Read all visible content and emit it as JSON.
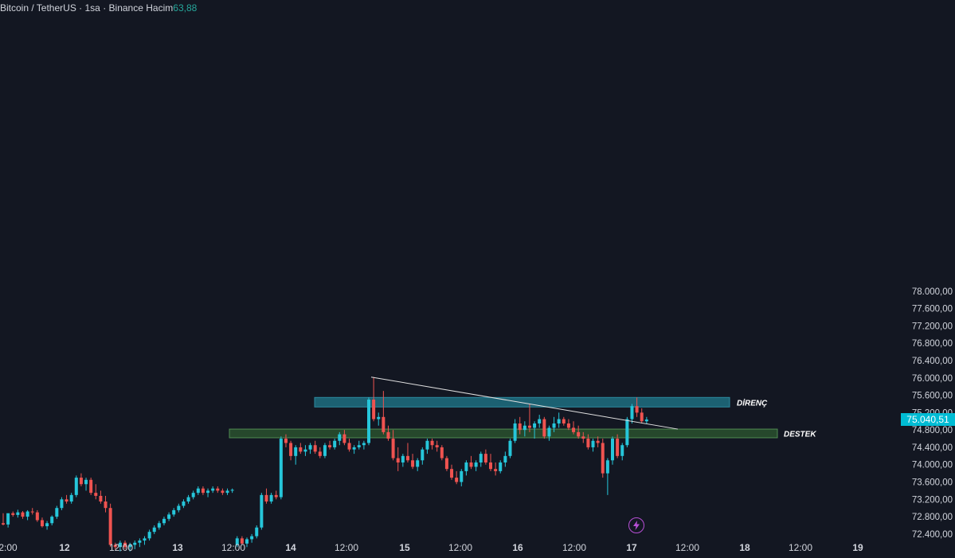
{
  "legend": {
    "symbol": "Bitcoin / TetherUS",
    "sep": " · ",
    "interval": "1sa",
    "exchange": "Binance",
    "volume_label": "Hacim",
    "volume_value": "63,88"
  },
  "last_price_label": "75.040,51",
  "colors": {
    "background": "#131722",
    "up": "#26c6da",
    "down": "#ef5350",
    "resistance_zone": "#1e6f80",
    "support_zone": "#2e5a30",
    "trendline": "#e0e0e0",
    "price_tag": "#00bcd4"
  },
  "icons": {
    "bolt": "lightning-icon"
  },
  "chart_data": {
    "type": "candlestick",
    "title": "",
    "y_axis": {
      "ticks": [
        72400,
        72800,
        73200,
        73600,
        74000,
        74400,
        74800,
        75200,
        75600,
        76000,
        76400,
        76800,
        77200,
        77600,
        78000
      ],
      "tick_labels": [
        "72.400,00",
        "72.800,00",
        "73.200,00",
        "73.600,00",
        "74.000,00",
        "74.400,00",
        "74.800,00",
        "75.200,00",
        "75.600,00",
        "76.000,00",
        "76.400,00",
        "76.800,00",
        "77.200,00",
        "77.600,00",
        "78.000,00"
      ],
      "range": [
        72150,
        78120
      ]
    },
    "x_axis": {
      "tick_labels": [
        "2:00",
        "12",
        "12:00",
        "13",
        "12:00",
        "14",
        "12:00",
        "15",
        "12:00",
        "16",
        "12:00",
        "17",
        "12:00",
        "18",
        "12:00",
        "19"
      ],
      "bold_labels": [
        "12",
        "13",
        "14",
        "15",
        "16",
        "17",
        "18",
        "19"
      ]
    },
    "annotations": [
      {
        "type": "zone",
        "label": "DİRENÇ",
        "price_range": [
          75330,
          75550
        ]
      },
      {
        "type": "zone",
        "label": "DESTEK",
        "price_range": [
          74620,
          74820
        ]
      },
      {
        "type": "trendline",
        "from_price": 76020,
        "to_price": 74820
      }
    ],
    "last_price": 75040.51,
    "candles": [
      [
        72650,
        72880,
        72600,
        72620
      ],
      [
        72620,
        72870,
        72550,
        72880
      ],
      [
        72880,
        72920,
        72800,
        72840
      ],
      [
        72840,
        72960,
        72780,
        72900
      ],
      [
        72900,
        72930,
        72750,
        72800
      ],
      [
        72800,
        72950,
        72720,
        72920
      ],
      [
        72920,
        73000,
        72850,
        72900
      ],
      [
        72900,
        72950,
        72680,
        72720
      ],
      [
        72720,
        72780,
        72550,
        72580
      ],
      [
        72580,
        72700,
        72500,
        72650
      ],
      [
        72650,
        72830,
        72600,
        72800
      ],
      [
        72800,
        73050,
        72750,
        73000
      ],
      [
        73000,
        73250,
        72950,
        73200
      ],
      [
        73200,
        73300,
        73100,
        73150
      ],
      [
        73150,
        73350,
        73100,
        73300
      ],
      [
        73300,
        73750,
        73250,
        73700
      ],
      [
        73700,
        73800,
        73500,
        73550
      ],
      [
        73550,
        73700,
        73400,
        73650
      ],
      [
        73650,
        73700,
        73300,
        73350
      ],
      [
        73350,
        73550,
        73200,
        73280
      ],
      [
        73280,
        73400,
        73100,
        73150
      ],
      [
        73150,
        73280,
        72900,
        73000
      ],
      [
        73000,
        73100,
        72100,
        72150
      ],
      [
        72150,
        72200,
        72050,
        72100
      ],
      [
        72100,
        72250,
        72000,
        72200
      ],
      [
        72200,
        72250,
        72050,
        72100
      ],
      [
        72100,
        72200,
        72000,
        72150
      ],
      [
        72150,
        72250,
        72050,
        72200
      ],
      [
        72200,
        72300,
        72100,
        72250
      ],
      [
        72250,
        72350,
        72150,
        72300
      ],
      [
        72300,
        72500,
        72250,
        72450
      ],
      [
        72450,
        72600,
        72400,
        72550
      ],
      [
        72550,
        72700,
        72500,
        72650
      ],
      [
        72650,
        72800,
        72600,
        72750
      ],
      [
        72750,
        72900,
        72700,
        72850
      ],
      [
        72850,
        73000,
        72800,
        72950
      ],
      [
        72950,
        73100,
        72900,
        73050
      ],
      [
        73050,
        73200,
        73000,
        73150
      ],
      [
        73150,
        73300,
        73100,
        73250
      ],
      [
        73250,
        73400,
        73200,
        73350
      ],
      [
        73350,
        73500,
        73300,
        73450
      ],
      [
        73450,
        73500,
        73300,
        73350
      ],
      [
        73350,
        73450,
        73250,
        73400
      ],
      [
        73400,
        73500,
        73350,
        73450
      ],
      [
        73450,
        73500,
        73350,
        73400
      ],
      [
        73400,
        73450,
        73300,
        73350
      ],
      [
        73350,
        73450,
        73300,
        73400
      ],
      [
        73400,
        73450,
        73350,
        73420
      ],
      [
        72150,
        72350,
        72100,
        72300
      ],
      [
        72300,
        72350,
        72150,
        72180
      ],
      [
        72180,
        72320,
        72100,
        72280
      ],
      [
        72280,
        72400,
        72200,
        72350
      ],
      [
        72350,
        72600,
        72300,
        72550
      ],
      [
        72550,
        73350,
        72500,
        73300
      ],
      [
        73300,
        73450,
        73100,
        73150
      ],
      [
        73150,
        73350,
        73100,
        73300
      ],
      [
        73300,
        73400,
        73200,
        73250
      ],
      [
        73250,
        74650,
        73200,
        74600
      ],
      [
        74600,
        74700,
        74400,
        74500
      ],
      [
        74500,
        74550,
        74100,
        74200
      ],
      [
        74200,
        74450,
        74000,
        74400
      ],
      [
        74400,
        74500,
        74250,
        74300
      ],
      [
        74300,
        74450,
        74200,
        74350
      ],
      [
        74350,
        74500,
        74250,
        74450
      ],
      [
        74450,
        74550,
        74250,
        74300
      ],
      [
        74300,
        74400,
        74150,
        74200
      ],
      [
        74200,
        74500,
        74150,
        74450
      ],
      [
        74450,
        74550,
        74350,
        74400
      ],
      [
        74400,
        74600,
        74350,
        74550
      ],
      [
        74550,
        74750,
        74450,
        74700
      ],
      [
        74700,
        74800,
        74450,
        74500
      ],
      [
        74500,
        74600,
        74300,
        74350
      ],
      [
        74350,
        74450,
        74250,
        74400
      ],
      [
        74400,
        74550,
        74350,
        74450
      ],
      [
        74450,
        74550,
        74350,
        74500
      ],
      [
        74500,
        75550,
        74450,
        75500
      ],
      [
        75500,
        76020,
        75000,
        75050
      ],
      [
        75050,
        75200,
        74900,
        75100
      ],
      [
        75100,
        75700,
        74700,
        74750
      ],
      [
        74750,
        74900,
        74550,
        74600
      ],
      [
        74600,
        74800,
        74100,
        74150
      ],
      [
        74150,
        74400,
        73850,
        74050
      ],
      [
        74050,
        74250,
        73950,
        74200
      ],
      [
        74200,
        74500,
        74050,
        74100
      ],
      [
        74100,
        74250,
        73900,
        73950
      ],
      [
        73950,
        74150,
        73850,
        74100
      ],
      [
        74100,
        74400,
        74000,
        74350
      ],
      [
        74350,
        74600,
        74250,
        74550
      ],
      [
        74550,
        74600,
        74350,
        74450
      ],
      [
        74450,
        74550,
        74300,
        74400
      ],
      [
        74400,
        74450,
        74100,
        74150
      ],
      [
        74150,
        74200,
        73850,
        73900
      ],
      [
        73900,
        74000,
        73650,
        73700
      ],
      [
        73700,
        73850,
        73550,
        73600
      ],
      [
        73600,
        73900,
        73500,
        73850
      ],
      [
        73850,
        74100,
        73750,
        74050
      ],
      [
        74050,
        74200,
        73900,
        73950
      ],
      [
        73950,
        74100,
        73850,
        74050
      ],
      [
        74050,
        74300,
        73950,
        74250
      ],
      [
        74250,
        74350,
        74000,
        74050
      ],
      [
        74050,
        74250,
        73850,
        73900
      ],
      [
        73900,
        74050,
        73750,
        73850
      ],
      [
        73850,
        74100,
        73800,
        74050
      ],
      [
        74050,
        74300,
        73950,
        74200
      ],
      [
        74200,
        74600,
        74150,
        74550
      ],
      [
        74550,
        75050,
        74500,
        74950
      ],
      [
        74950,
        75100,
        74700,
        74800
      ],
      [
        74800,
        75000,
        74650,
        74900
      ],
      [
        74900,
        75400,
        74750,
        74850
      ],
      [
        74850,
        75000,
        74600,
        74950
      ],
      [
        74950,
        75150,
        74850,
        75050
      ],
      [
        75050,
        75100,
        74600,
        74650
      ],
      [
        74650,
        74900,
        74550,
        74850
      ],
      [
        74850,
        75100,
        74750,
        74950
      ],
      [
        74950,
        75200,
        74850,
        75050
      ],
      [
        75050,
        75100,
        74900,
        74950
      ],
      [
        74950,
        75050,
        74800,
        74850
      ],
      [
        74850,
        75000,
        74700,
        74750
      ],
      [
        74750,
        74900,
        74600,
        74650
      ],
      [
        74650,
        74750,
        74500,
        74600
      ],
      [
        74600,
        74700,
        74350,
        74400
      ],
      [
        74400,
        74600,
        74300,
        74550
      ],
      [
        74550,
        74650,
        74400,
        74500
      ],
      [
        74500,
        74600,
        73700,
        73800
      ],
      [
        73800,
        74150,
        73300,
        74100
      ],
      [
        74100,
        74650,
        74000,
        74600
      ],
      [
        74600,
        74700,
        74150,
        74200
      ],
      [
        74200,
        74500,
        74100,
        74450
      ],
      [
        74450,
        75100,
        74400,
        75050
      ],
      [
        75050,
        75400,
        74950,
        75350
      ],
      [
        75350,
        75550,
        75100,
        75200
      ],
      [
        75200,
        75300,
        74950,
        75000
      ],
      [
        75000,
        75100,
        74950,
        75040.51
      ]
    ]
  }
}
